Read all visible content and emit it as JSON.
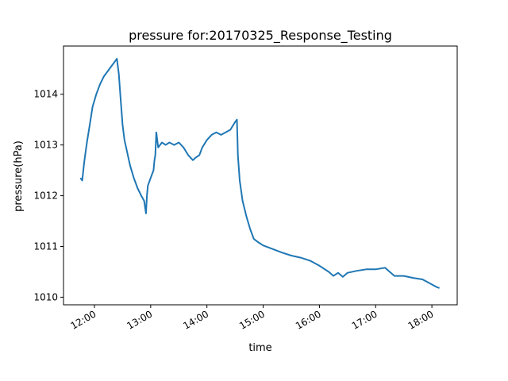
{
  "chart_data": {
    "type": "line",
    "title": "pressure for:20170325_Response_Testing",
    "xlabel": "time",
    "ylabel": "pressure(hPa)",
    "x_unit": "time of day (HH:MM)",
    "xlim": [
      "11:27",
      "18:27"
    ],
    "ylim": [
      1009.85,
      1014.95
    ],
    "grid": false,
    "x_ticks": [
      "12:00",
      "13:00",
      "14:00",
      "15:00",
      "16:00",
      "17:00",
      "18:00"
    ],
    "y_ticks": [
      "1010",
      "1011",
      "1012",
      "1013",
      "1014"
    ],
    "series": [
      {
        "color": "#1f77b4",
        "x": [
          "11:45",
          "11:47",
          "11:49",
          "11:52",
          "11:55",
          "11:58",
          "12:02",
          "12:06",
          "12:10",
          "12:14",
          "12:18",
          "12:22",
          "12:24",
          "12:26",
          "12:28",
          "12:30",
          "12:32",
          "12:35",
          "12:38",
          "12:42",
          "12:46",
          "12:50",
          "12:53",
          "12:55",
          "12:56",
          "12:57",
          "13:00",
          "13:03",
          "13:04",
          "13:05",
          "13:06",
          "13:08",
          "13:12",
          "13:16",
          "13:20",
          "13:25",
          "13:30",
          "13:35",
          "13:40",
          "13:45",
          "13:48",
          "13:52",
          "13:55",
          "14:00",
          "14:05",
          "14:10",
          "14:15",
          "14:20",
          "14:25",
          "14:30",
          "14:32",
          "14:33",
          "14:35",
          "14:38",
          "14:42",
          "14:46",
          "14:50",
          "14:55",
          "15:00",
          "15:10",
          "15:20",
          "15:30",
          "15:40",
          "15:50",
          "16:00",
          "16:10",
          "16:15",
          "16:20",
          "16:25",
          "16:30",
          "16:40",
          "16:50",
          "17:00",
          "17:10",
          "17:15",
          "17:20",
          "17:30",
          "17:40",
          "17:50",
          "18:00",
          "18:05",
          "18:08"
        ],
        "y": [
          1012.35,
          1012.3,
          1012.65,
          1013.05,
          1013.4,
          1013.75,
          1014.0,
          1014.2,
          1014.35,
          1014.45,
          1014.55,
          1014.65,
          1014.7,
          1014.4,
          1013.9,
          1013.4,
          1013.1,
          1012.85,
          1012.6,
          1012.35,
          1012.15,
          1012.0,
          1011.9,
          1011.65,
          1012.0,
          1012.2,
          1012.35,
          1012.5,
          1012.7,
          1012.8,
          1013.25,
          1012.95,
          1013.05,
          1013.0,
          1013.05,
          1013.0,
          1013.05,
          1012.95,
          1012.8,
          1012.7,
          1012.75,
          1012.8,
          1012.95,
          1013.1,
          1013.2,
          1013.25,
          1013.2,
          1013.25,
          1013.3,
          1013.45,
          1013.5,
          1012.8,
          1012.3,
          1011.9,
          1011.6,
          1011.35,
          1011.15,
          1011.08,
          1011.02,
          1010.95,
          1010.88,
          1010.82,
          1010.78,
          1010.72,
          1010.62,
          1010.5,
          1010.42,
          1010.48,
          1010.4,
          1010.48,
          1010.52,
          1010.55,
          1010.55,
          1010.58,
          1010.5,
          1010.42,
          1010.42,
          1010.38,
          1010.35,
          1010.25,
          1010.2,
          1010.18
        ]
      }
    ]
  }
}
